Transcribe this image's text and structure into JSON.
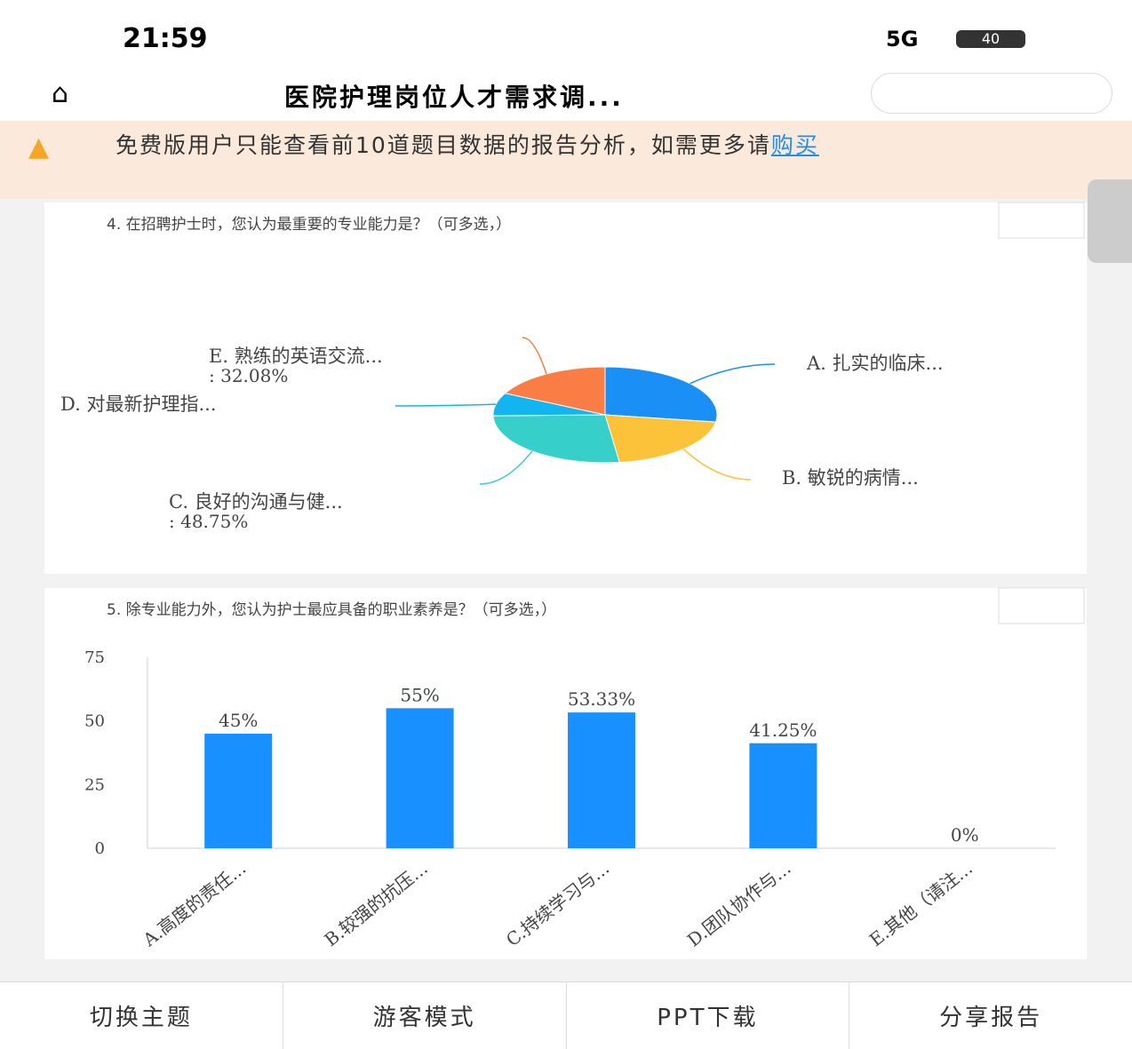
{
  "status_bar": {
    "time": "21:59",
    "network": "5G",
    "battery": "40"
  },
  "nav": {
    "title": "医院护理岗位人才需求调..."
  },
  "notice": {
    "text": "免费版用户只能查看前10道题目数据的报告分析，如需更多请",
    "link": "购买"
  },
  "chart_data": [
    {
      "type": "pie",
      "title": "4. 在招聘护士时，您认为最重要的专业能力是？（可多选，）",
      "categories": [
        "A. 扎实的临床...",
        "B. 敏锐的病情...",
        "C. 良好的沟通与健...",
        "D. 对最新护理指...",
        "E. 熟练的英语交流..."
      ],
      "values": [
        50,
        37.5,
        48.75,
        14.17,
        32.08
      ],
      "value_labels": [
        null,
        null,
        ": 48.75%",
        null,
        ": 32.08%"
      ],
      "colors": [
        "#1a8ff5",
        "#fcc239",
        "#36cfc9",
        "#13b5f0",
        "#fa7d45"
      ]
    },
    {
      "type": "bar",
      "title": "5. 除专业能力外，您认为护士最应具备的职业素养是？（可多选，）",
      "categories": [
        "A.高度的责任...",
        "B.较强的抗压...",
        "C.持续学习与...",
        "D.团队协作与...",
        "E.其他（请注..."
      ],
      "values": [
        45,
        55,
        53.33,
        41.25,
        0
      ],
      "value_labels": [
        "45%",
        "55%",
        "53.33%",
        "41.25%",
        "0%"
      ],
      "color": "#1890ff",
      "ylim": [
        0,
        75
      ],
      "yticks": [
        0,
        25,
        50,
        75
      ]
    }
  ],
  "toolbar": [
    "切换主题",
    "游客模式",
    "PPT下载",
    "分享报告"
  ]
}
